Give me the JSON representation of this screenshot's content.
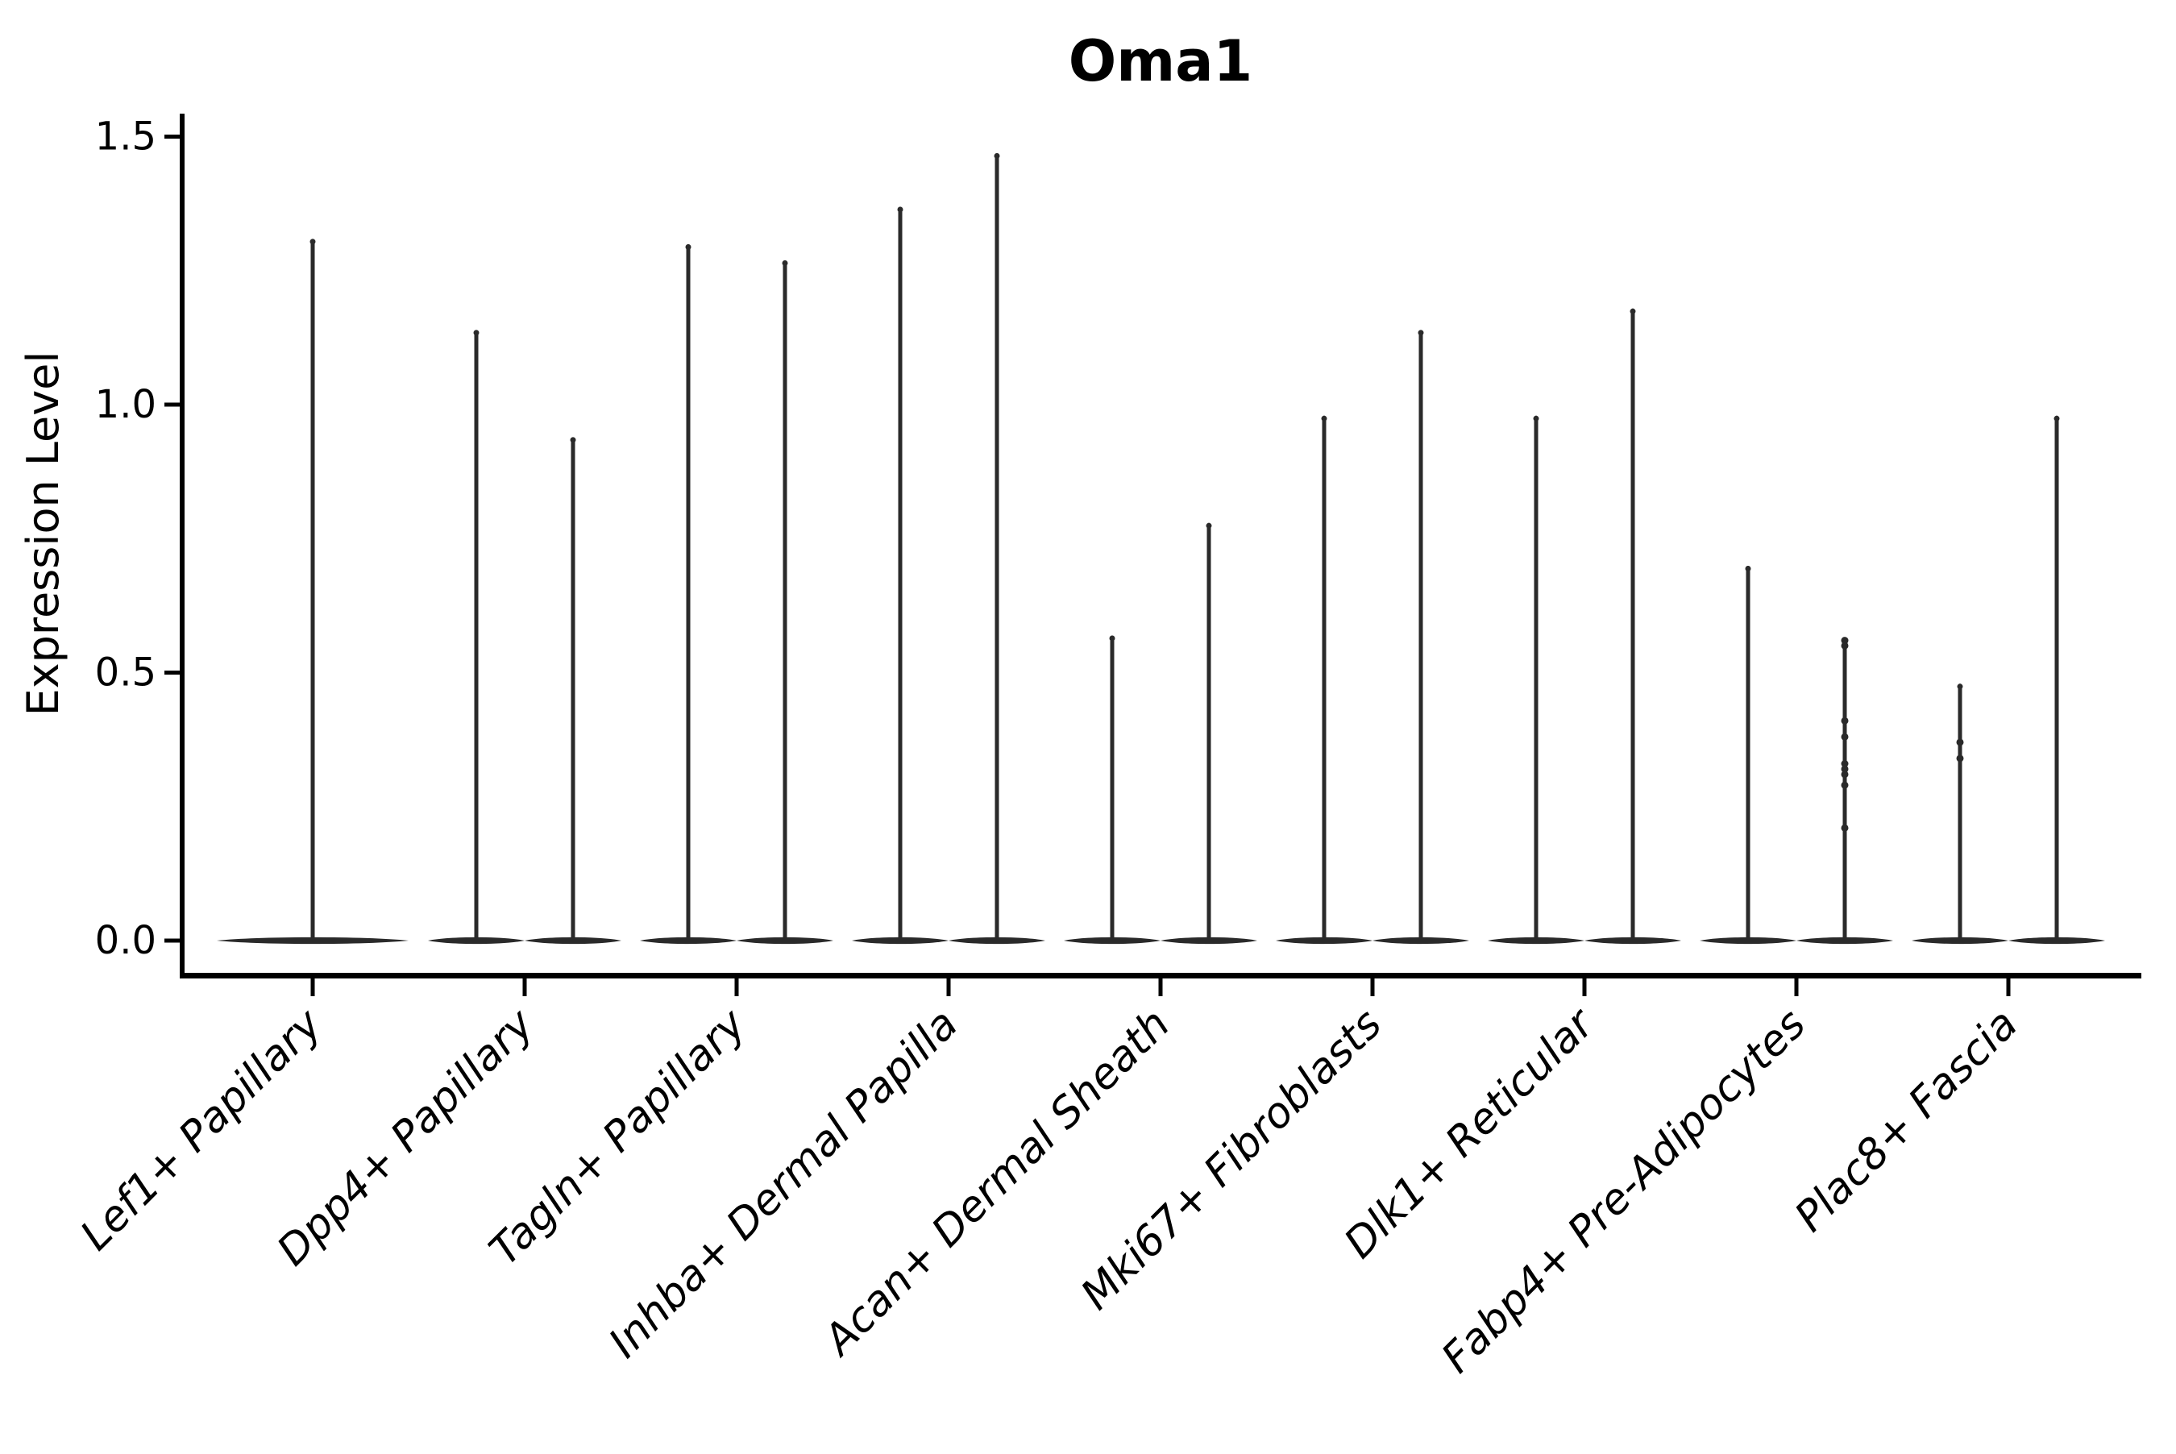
{
  "figure": {
    "title": "Oma1",
    "ylabel": "Expression Level",
    "background_color": "#ffffff",
    "axis_color": "#000000",
    "violin_color": "#2a2a2a"
  },
  "chart_data": {
    "type": "violin",
    "title": "Oma1",
    "xlabel": "",
    "ylabel": "Expression Level",
    "grid": false,
    "legend": "none",
    "ylim": [
      -0.065,
      1.545
    ],
    "yticks": [
      0.0,
      0.5,
      1.0,
      1.5
    ],
    "ytick_labels": [
      "0.0",
      "0.5",
      "1.0",
      "1.5"
    ],
    "categories": [
      "Lef1+ Papillary",
      "Dpp4+ Papillary",
      "Tagln+ Papillary",
      "Inhba+ Dermal Papilla",
      "Acan+ Dermal Sheath",
      "Mki67+ Fibroblasts",
      "Dlk1+ Reticular",
      "Fabp4+ Pre-Adipocytes",
      "Plac8+ Fascia"
    ],
    "description": "Violin plot of Oma1 expression; most cells at 0 giving wide flat bases with thin spikes up to each group's maximum. Two violins per category except Lef1+ Papillary which has a single centered wide violin.",
    "violins": [
      {
        "category_index": 0,
        "category": "Lef1+ Papillary",
        "position": "center",
        "max": 1.31,
        "dots": []
      },
      {
        "category_index": 1,
        "category": "Dpp4+ Papillary",
        "position": "left",
        "max": 1.14,
        "dots": []
      },
      {
        "category_index": 1,
        "category": "Dpp4+ Papillary",
        "position": "right",
        "max": 0.94,
        "dots": []
      },
      {
        "category_index": 2,
        "category": "Tagln+ Papillary",
        "position": "left",
        "max": 1.3,
        "dots": []
      },
      {
        "category_index": 2,
        "category": "Tagln+ Papillary",
        "position": "right",
        "max": 1.27,
        "dots": []
      },
      {
        "category_index": 3,
        "category": "Inhba+ Dermal Papilla",
        "position": "left",
        "max": 1.37,
        "dots": []
      },
      {
        "category_index": 3,
        "category": "Inhba+ Dermal Papilla",
        "position": "right",
        "max": 1.47,
        "dots": []
      },
      {
        "category_index": 4,
        "category": "Acan+ Dermal Sheath",
        "position": "left",
        "max": 0.57,
        "dots": []
      },
      {
        "category_index": 4,
        "category": "Acan+ Dermal Sheath",
        "position": "right",
        "max": 0.78,
        "dots": []
      },
      {
        "category_index": 5,
        "category": "Mki67+ Fibroblasts",
        "position": "left",
        "max": 0.98,
        "dots": []
      },
      {
        "category_index": 5,
        "category": "Mki67+ Fibroblasts",
        "position": "right",
        "max": 1.14,
        "dots": []
      },
      {
        "category_index": 6,
        "category": "Dlk1+ Reticular",
        "position": "left",
        "max": 0.98,
        "dots": []
      },
      {
        "category_index": 6,
        "category": "Dlk1+ Reticular",
        "position": "right",
        "max": 1.18,
        "dots": []
      },
      {
        "category_index": 7,
        "category": "Fabp4+ Pre-Adipocytes",
        "position": "left",
        "max": 0.7,
        "dots": []
      },
      {
        "category_index": 7,
        "category": "Fabp4+ Pre-Adipocytes",
        "position": "right",
        "max": 0.56,
        "dots": [
          0.56,
          0.55,
          0.41,
          0.38,
          0.33,
          0.32,
          0.31,
          0.29,
          0.21
        ]
      },
      {
        "category_index": 8,
        "category": "Plac8+ Fascia",
        "position": "left",
        "max": 0.48,
        "dots": [
          0.37,
          0.34
        ]
      },
      {
        "category_index": 8,
        "category": "Plac8+ Fascia",
        "position": "right",
        "max": 0.98,
        "dots": []
      }
    ]
  }
}
